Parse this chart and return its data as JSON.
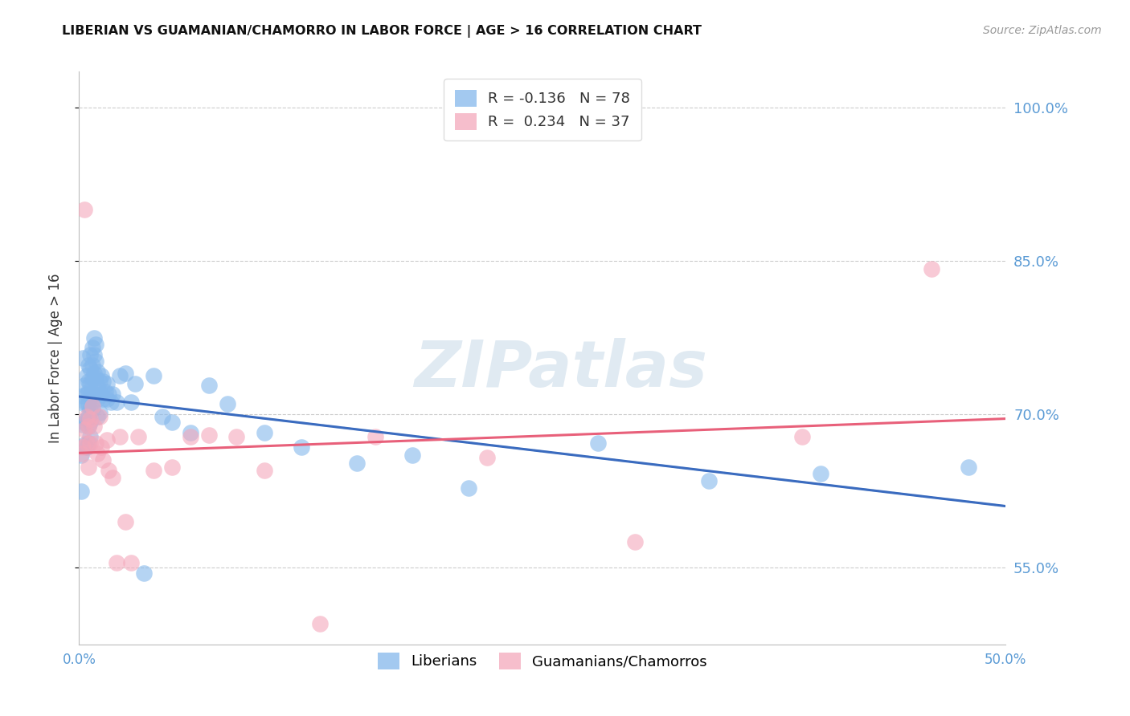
{
  "title": "LIBERIAN VS GUAMANIAN/CHAMORRO IN LABOR FORCE | AGE > 16 CORRELATION CHART",
  "source": "Source: ZipAtlas.com",
  "ylabel": "In Labor Force | Age > 16",
  "watermark": "ZIPatlas",
  "liberian_color": "#85B8EC",
  "guamanian_color": "#F4A8BB",
  "liberian_line_color": "#3A6BBF",
  "guamanian_line_color": "#E8607A",
  "dashed_line_color": "#A8CCEA",
  "liberian_R": -0.136,
  "liberian_N": 78,
  "guamanian_R": 0.234,
  "guamanian_N": 37,
  "x_min": 0.0,
  "x_max": 0.5,
  "y_min": 0.475,
  "y_max": 1.035,
  "y_ticks": [
    0.55,
    0.7,
    0.85,
    1.0
  ],
  "y_tick_labels": [
    "55.0%",
    "70.0%",
    "85.0%",
    "100.0%"
  ],
  "liberian_x": [
    0.001,
    0.001,
    0.002,
    0.002,
    0.002,
    0.003,
    0.003,
    0.003,
    0.003,
    0.004,
    0.004,
    0.004,
    0.004,
    0.004,
    0.005,
    0.005,
    0.005,
    0.005,
    0.005,
    0.005,
    0.005,
    0.006,
    0.006,
    0.006,
    0.006,
    0.006,
    0.006,
    0.006,
    0.007,
    0.007,
    0.007,
    0.007,
    0.007,
    0.008,
    0.008,
    0.008,
    0.008,
    0.009,
    0.009,
    0.009,
    0.01,
    0.01,
    0.01,
    0.01,
    0.011,
    0.011,
    0.011,
    0.012,
    0.012,
    0.013,
    0.013,
    0.014,
    0.015,
    0.015,
    0.016,
    0.017,
    0.018,
    0.02,
    0.022,
    0.025,
    0.028,
    0.03,
    0.035,
    0.04,
    0.045,
    0.05,
    0.06,
    0.07,
    0.08,
    0.1,
    0.12,
    0.15,
    0.18,
    0.21,
    0.28,
    0.34,
    0.4,
    0.48
  ],
  "liberian_y": [
    0.66,
    0.625,
    0.755,
    0.718,
    0.69,
    0.728,
    0.71,
    0.692,
    0.67,
    0.738,
    0.72,
    0.71,
    0.695,
    0.668,
    0.748,
    0.732,
    0.722,
    0.71,
    0.698,
    0.688,
    0.672,
    0.758,
    0.745,
    0.73,
    0.718,
    0.705,
    0.692,
    0.678,
    0.765,
    0.748,
    0.735,
    0.72,
    0.705,
    0.775,
    0.758,
    0.74,
    0.72,
    0.768,
    0.752,
    0.735,
    0.742,
    0.728,
    0.715,
    0.698,
    0.732,
    0.718,
    0.702,
    0.738,
    0.72,
    0.732,
    0.715,
    0.722,
    0.73,
    0.715,
    0.72,
    0.712,
    0.72,
    0.712,
    0.738,
    0.74,
    0.712,
    0.73,
    0.545,
    0.738,
    0.698,
    0.692,
    0.682,
    0.728,
    0.71,
    0.682,
    0.668,
    0.652,
    0.66,
    0.628,
    0.672,
    0.635,
    0.642,
    0.648
  ],
  "guamanian_x": [
    0.001,
    0.002,
    0.003,
    0.003,
    0.004,
    0.004,
    0.005,
    0.005,
    0.006,
    0.006,
    0.007,
    0.008,
    0.009,
    0.01,
    0.011,
    0.012,
    0.013,
    0.015,
    0.016,
    0.018,
    0.02,
    0.022,
    0.025,
    0.028,
    0.032,
    0.04,
    0.05,
    0.06,
    0.07,
    0.085,
    0.1,
    0.13,
    0.16,
    0.22,
    0.3,
    0.39,
    0.46
  ],
  "guamanian_y": [
    0.662,
    0.668,
    0.9,
    0.685,
    0.698,
    0.672,
    0.648,
    0.688,
    0.672,
    0.695,
    0.708,
    0.688,
    0.672,
    0.662,
    0.698,
    0.668,
    0.655,
    0.675,
    0.645,
    0.638,
    0.555,
    0.678,
    0.595,
    0.555,
    0.678,
    0.645,
    0.648,
    0.678,
    0.68,
    0.678,
    0.645,
    0.495,
    0.678,
    0.658,
    0.575,
    0.678,
    0.842
  ]
}
